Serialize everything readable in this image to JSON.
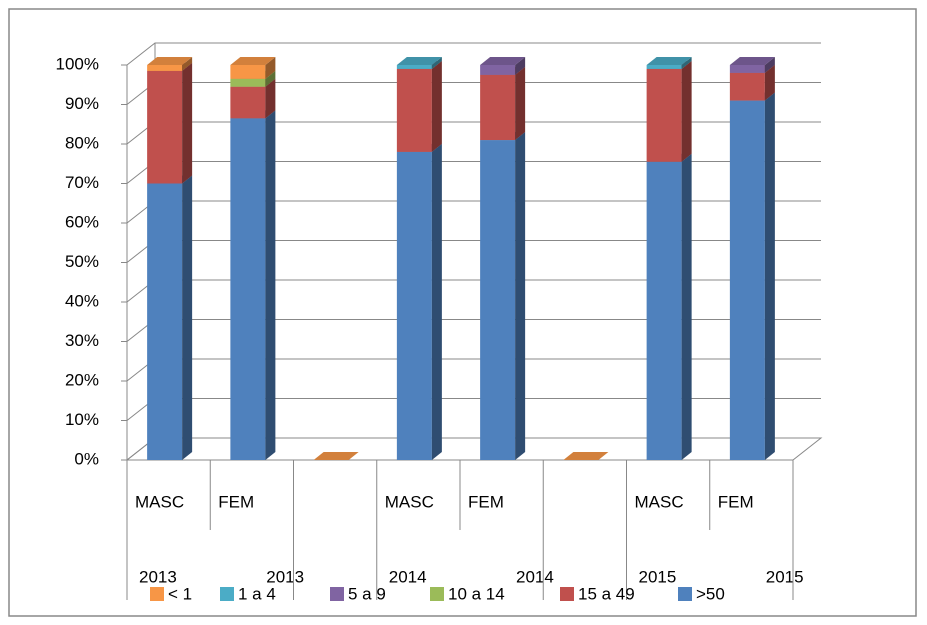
{
  "chart_data": {
    "type": "bar3d_stacked",
    "categories": [
      "MASC",
      "FEM",
      null,
      "MASC",
      "FEM",
      null,
      "MASC",
      "FEM"
    ],
    "category_groups": [
      "2013",
      "2013",
      null,
      "2014",
      "2014",
      null,
      "2015",
      "2015"
    ],
    "series": [
      {
        "name": ">50",
        "color": "#4f81bd",
        "values": [
          70,
          86.5,
          0,
          78,
          81,
          0,
          75.5,
          91
        ]
      },
      {
        "name": "15 a 49",
        "color": "#c0504d",
        "values": [
          28.5,
          8,
          0,
          21,
          16.5,
          0,
          23.5,
          7
        ]
      },
      {
        "name": "10 a 14",
        "color": "#9bbb59",
        "values": [
          0,
          2,
          0,
          0,
          0,
          0,
          0,
          0
        ]
      },
      {
        "name": "5 a 9",
        "color": "#8064a2",
        "values": [
          0,
          0,
          0,
          0,
          2.5,
          0,
          0,
          2
        ]
      },
      {
        "name": "1 a 4",
        "color": "#4bacc6",
        "values": [
          0,
          0,
          0,
          1,
          0,
          0,
          1,
          0
        ]
      },
      {
        "name": "< 1",
        "color": "#f79646",
        "values": [
          1.5,
          3.5,
          0,
          0,
          0,
          0,
          0,
          0
        ]
      }
    ],
    "ylim": [
      0,
      100
    ],
    "yticks": [
      {
        "value": 0,
        "label": "0%"
      },
      {
        "value": 10,
        "label": "10%"
      },
      {
        "value": 20,
        "label": "20%"
      },
      {
        "value": 30,
        "label": "30%"
      },
      {
        "value": 40,
        "label": "40%"
      },
      {
        "value": 50,
        "label": "50%"
      },
      {
        "value": 60,
        "label": "60%"
      },
      {
        "value": 70,
        "label": "70%"
      },
      {
        "value": 80,
        "label": "80%"
      },
      {
        "value": 90,
        "label": "90%"
      },
      {
        "value": 100,
        "label": "100%"
      }
    ],
    "grid": true,
    "legend": "bottom"
  }
}
